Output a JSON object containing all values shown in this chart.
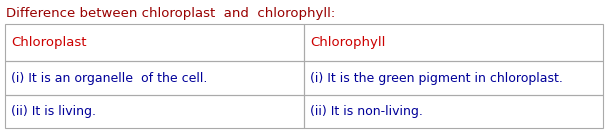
{
  "title": "Difference between chloroplast  and  chlorophyll:",
  "title_color": "#990000",
  "title_fontsize": 9.5,
  "header_left": "Chloroplast",
  "header_right": "Chlorophyll",
  "header_color": "#cc0000",
  "header_fontsize": 9.5,
  "rows": [
    [
      "(i) It is an organelle  of the cell.",
      "(i) It is the green pigment in chloroplast."
    ],
    [
      "(ii) It is living.",
      "(ii) It is non-living."
    ]
  ],
  "row_color": "#000099",
  "row_fontsize": 9.0,
  "bg_color": "#ffffff",
  "table_border_color": "#aaaaaa",
  "fig_width": 6.08,
  "fig_height": 1.32,
  "dpi": 100
}
